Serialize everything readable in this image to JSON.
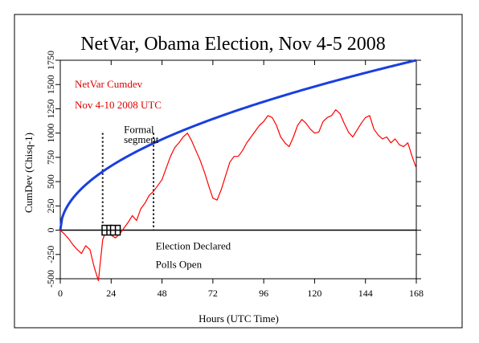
{
  "chart_data": {
    "type": "line",
    "title": "NetVar, Obama Election, Nov 4-5 2008",
    "xlabel": "Hours (UTC Time)",
    "ylabel": "CumDev (Chisq-1)",
    "xlim": [
      0,
      168
    ],
    "ylim": [
      -500,
      1750
    ],
    "x_ticks": [
      0,
      24,
      48,
      72,
      96,
      120,
      144,
      168
    ],
    "y_ticks": [
      -500,
      -250,
      0,
      250,
      500,
      750,
      1000,
      1250,
      1500,
      1750
    ],
    "grid": false,
    "legend": {
      "placement": "top-left",
      "entries": [
        "NetVar Cumdev",
        "Nov 4-10 2008 UTC"
      ]
    },
    "series": [
      {
        "name": "NetVar Cumdev",
        "color": "#ff0000",
        "x": [
          0,
          2,
          4,
          6,
          8,
          10,
          12,
          14,
          16,
          18,
          20,
          22,
          24,
          26,
          28,
          30,
          32,
          34,
          36,
          38,
          40,
          42,
          44,
          46,
          48,
          50,
          52,
          54,
          56,
          58,
          60,
          62,
          64,
          66,
          68,
          70,
          72,
          74,
          76,
          78,
          80,
          82,
          84,
          86,
          88,
          90,
          92,
          94,
          96,
          98,
          100,
          102,
          104,
          106,
          108,
          110,
          112,
          114,
          116,
          118,
          120,
          122,
          124,
          126,
          128,
          130,
          132,
          134,
          136,
          138,
          140,
          142,
          144,
          146,
          148,
          150,
          152,
          154,
          156,
          158,
          160,
          162,
          164,
          166,
          168
        ],
        "y": [
          0,
          -40,
          -90,
          -150,
          -200,
          -240,
          -160,
          -200,
          -380,
          -520,
          -100,
          20,
          -50,
          -80,
          -40,
          20,
          80,
          150,
          100,
          220,
          280,
          360,
          400,
          460,
          520,
          640,
          760,
          850,
          900,
          960,
          1000,
          920,
          820,
          720,
          600,
          460,
          330,
          310,
          420,
          560,
          700,
          760,
          760,
          820,
          900,
          960,
          1020,
          1080,
          1120,
          1180,
          1160,
          1080,
          960,
          900,
          860,
          960,
          1080,
          1140,
          1100,
          1040,
          1000,
          1010,
          1120,
          1160,
          1180,
          1240,
          1200,
          1100,
          1010,
          960,
          1030,
          1100,
          1160,
          1180,
          1040,
          980,
          940,
          960,
          900,
          940,
          880,
          860,
          900,
          760,
          640
        ]
      },
      {
        "name": "Expected",
        "color": "#1a3fe0",
        "x": [
          0,
          168
        ],
        "y": [
          0,
          1750
        ],
        "shape": "sqrt"
      }
    ],
    "markers": [
      {
        "x": 22,
        "y": 0,
        "symbol": "boxed-cross"
      },
      {
        "x": 26,
        "y": 0,
        "symbol": "boxed-cross"
      }
    ],
    "vertical_lines": [
      {
        "x": 20,
        "style": "dotted"
      },
      {
        "x": 44,
        "style": "dotted"
      }
    ],
    "annotations": [
      {
        "text": "Formal",
        "x": 30,
        "y": 1000
      },
      {
        "text": "segment",
        "x": 30,
        "y": 900
      },
      {
        "text": "Election Declared",
        "x": 45,
        "y": -200
      },
      {
        "text": "Polls Open",
        "x": 45,
        "y": -390
      }
    ]
  }
}
